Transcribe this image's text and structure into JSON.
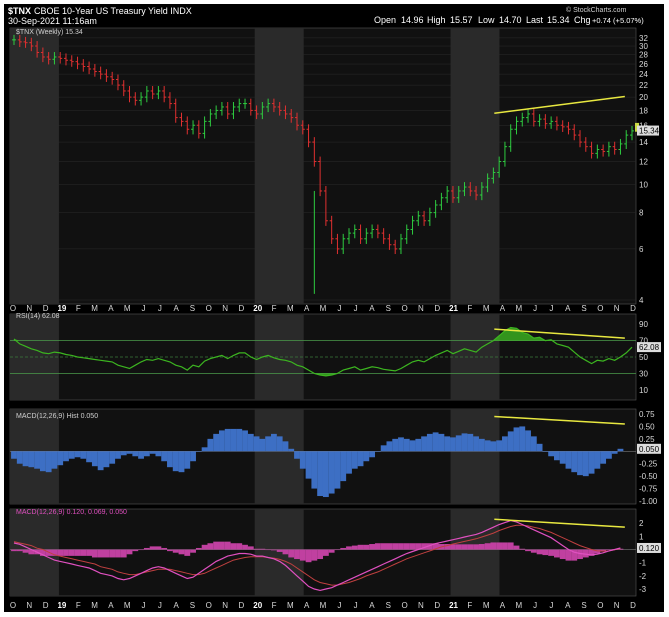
{
  "header": {
    "symbol": "$TNX",
    "name": "CBOE 10-Year US Treasury Yield INDX",
    "date": "30-Sep-2021 11:16am",
    "open_label": "Open",
    "open": "14.96",
    "high_label": "High",
    "high": "15.57",
    "low_label": "Low",
    "low": "14.70",
    "last_label": "Last",
    "last": "15.34",
    "chg_label": "Chg",
    "chg": "+0.74 (+5.07%)",
    "watermark": "© StockCharts.com",
    "legend": "$TNX (Weekly) 15.34"
  },
  "colors": {
    "up": "#2ecc40",
    "down": "#e03030",
    "rsi": "#3cb520",
    "macd_hist": "#3d6fc4",
    "macd_line": "#e050c0",
    "trend": "#e8e840",
    "bg": "#000000",
    "shade": "#2a2a2a"
  },
  "x_axis": {
    "labels_top": [
      "O",
      "N",
      "D",
      "19",
      "F",
      "M",
      "A",
      "M",
      "J",
      "J",
      "A",
      "S",
      "O",
      "N",
      "D",
      "20",
      "F",
      "M",
      "A",
      "M",
      "J",
      "J",
      "A",
      "S",
      "O",
      "N",
      "D",
      "21",
      "F",
      "M",
      "A",
      "M",
      "J",
      "J",
      "A",
      "S",
      "O",
      "N",
      "D"
    ]
  },
  "chart_data": [
    {
      "type": "ohlc",
      "title": "$TNX (Weekly) 15.34",
      "ylim": [
        4,
        33
      ],
      "y_scale": "log",
      "y_ticks": [
        4,
        6,
        8,
        10,
        12,
        14,
        16,
        18,
        20,
        22,
        24,
        26,
        28,
        30,
        32
      ],
      "last_value": "15.34",
      "x": [
        "O",
        "N",
        "D",
        "19",
        "F",
        "M",
        "A",
        "M",
        "J",
        "J",
        "A",
        "S",
        "O",
        "N",
        "D",
        "20",
        "F",
        "M",
        "A",
        "M",
        "J",
        "J",
        "A",
        "S",
        "O",
        "N",
        "D",
        "21",
        "F",
        "M",
        "A",
        "M",
        "J",
        "J",
        "A",
        "S",
        "O",
        "N",
        "D"
      ],
      "close_path": [
        31.5,
        31.0,
        30.8,
        30.0,
        28.5,
        27.5,
        27.0,
        27.5,
        27.2,
        26.8,
        26.5,
        26.0,
        25.5,
        25.0,
        24.5,
        24.0,
        23.5,
        23.0,
        22.0,
        21.0,
        20.0,
        19.5,
        20.0,
        21.0,
        20.5,
        21.0,
        20.0,
        19.0,
        17.0,
        16.5,
        15.5,
        16.0,
        15.0,
        16.5,
        17.5,
        18.0,
        18.5,
        17.5,
        18.5,
        19.0,
        19.0,
        18.0,
        17.5,
        18.5,
        19.0,
        18.5,
        18.0,
        17.5,
        17.0,
        16.0,
        15.5,
        14.0,
        12.0,
        9.5,
        7.5,
        6.5,
        6.0,
        6.5,
        6.8,
        7.0,
        6.5,
        6.8,
        7.0,
        6.8,
        6.5,
        6.2,
        6.0,
        6.5,
        7.0,
        7.5,
        7.8,
        7.5,
        8.0,
        8.5,
        9.0,
        9.5,
        9.0,
        9.5,
        9.8,
        9.5,
        9.2,
        9.8,
        10.5,
        11.0,
        12.0,
        13.5,
        15.5,
        16.5,
        17.0,
        17.5,
        16.5,
        16.8,
        16.2,
        16.5,
        16.0,
        15.8,
        15.5,
        14.8,
        14.0,
        13.5,
        12.8,
        13.2,
        13.0,
        13.5,
        13.2,
        13.8,
        14.8,
        15.3
      ],
      "trendline": [
        [
          "Mar-21",
          17.6
        ],
        [
          "Nov-21",
          20.1
        ]
      ]
    },
    {
      "type": "line",
      "title": "RSI(14) 62.08",
      "ylim": [
        0,
        100
      ],
      "y_ticks": [
        10,
        30,
        50,
        70,
        90
      ],
      "reference_lines": [
        30,
        50,
        70
      ],
      "last_value": "62.08",
      "values": [
        72,
        66,
        63,
        60,
        58,
        55,
        54,
        56,
        55,
        53,
        52,
        50,
        49,
        48,
        47,
        46,
        45,
        44,
        40,
        38,
        36,
        40,
        44,
        47,
        46,
        48,
        46,
        44,
        40,
        38,
        34,
        40,
        38,
        45,
        48,
        50,
        52,
        48,
        52,
        55,
        55,
        50,
        47,
        50,
        52,
        49,
        47,
        46,
        44,
        40,
        38,
        34,
        30,
        28,
        27,
        28,
        30,
        34,
        36,
        38,
        34,
        36,
        38,
        37,
        35,
        34,
        33,
        36,
        40,
        44,
        46,
        44,
        48,
        52,
        55,
        58,
        54,
        57,
        60,
        58,
        56,
        62,
        66,
        70,
        76,
        82,
        86,
        85,
        80,
        78,
        73,
        74,
        70,
        71,
        66,
        64,
        62,
        56,
        50,
        46,
        42,
        46,
        45,
        48,
        46,
        50,
        55,
        62
      ],
      "trendline": [
        [
          "Mar-21",
          84
        ],
        [
          "Nov-21",
          73
        ]
      ]
    },
    {
      "type": "bar",
      "title": "MACD(12,26,9) Hist 0.050",
      "ylim": [
        -1.0,
        0.75
      ],
      "y_ticks": [
        -1.0,
        -0.75,
        -0.5,
        -0.25,
        0.25,
        0.5,
        0.75
      ],
      "last_value": "0.050",
      "values": [
        -0.15,
        -0.25,
        -0.3,
        -0.32,
        -0.35,
        -0.4,
        -0.42,
        -0.35,
        -0.28,
        -0.2,
        -0.15,
        -0.12,
        -0.15,
        -0.22,
        -0.3,
        -0.38,
        -0.32,
        -0.25,
        -0.15,
        -0.08,
        -0.05,
        -0.1,
        -0.15,
        -0.1,
        -0.05,
        -0.1,
        -0.2,
        -0.32,
        -0.4,
        -0.42,
        -0.35,
        -0.2,
        0.0,
        0.08,
        0.25,
        0.35,
        0.42,
        0.45,
        0.45,
        0.45,
        0.42,
        0.35,
        0.3,
        0.25,
        0.3,
        0.35,
        0.3,
        0.2,
        0.05,
        -0.15,
        -0.35,
        -0.55,
        -0.75,
        -0.9,
        -0.92,
        -0.85,
        -0.75,
        -0.6,
        -0.45,
        -0.35,
        -0.3,
        -0.2,
        -0.12,
        0.0,
        0.12,
        0.2,
        0.25,
        0.28,
        0.25,
        0.22,
        0.25,
        0.3,
        0.35,
        0.38,
        0.35,
        0.3,
        0.28,
        0.32,
        0.36,
        0.35,
        0.3,
        0.25,
        0.22,
        0.2,
        0.22,
        0.3,
        0.4,
        0.48,
        0.5,
        0.42,
        0.3,
        0.15,
        0.0,
        -0.1,
        -0.18,
        -0.25,
        -0.35,
        -0.42,
        -0.48,
        -0.5,
        -0.45,
        -0.35,
        -0.25,
        -0.15,
        -0.05,
        0.05
      ],
      "trendline": [
        [
          "Mar-21",
          0.7
        ],
        [
          "Nov-21",
          0.55
        ]
      ]
    },
    {
      "type": "line",
      "title": "MACD(12,26,9) 0.120, 0.069, 0.050",
      "ylim": [
        -3.3,
        2.7
      ],
      "y_ticks": [
        -3,
        -2,
        -1,
        1,
        2
      ],
      "last_value": "0.120",
      "series": [
        {
          "name": "MACD",
          "values": [
            0.5,
            0.4,
            0.2,
            0.0,
            -0.2,
            -0.4,
            -0.6,
            -0.8,
            -0.9,
            -1.0,
            -1.1,
            -1.2,
            -1.3,
            -1.4,
            -1.6,
            -1.8,
            -1.9,
            -2.0,
            -2.2,
            -2.3,
            -2.2,
            -2.0,
            -1.8,
            -1.6,
            -1.4,
            -1.3,
            -1.4,
            -1.6,
            -1.8,
            -2.0,
            -2.2,
            -2.1,
            -1.8,
            -1.5,
            -1.2,
            -0.9,
            -0.7,
            -0.5,
            -0.4,
            -0.3,
            -0.3,
            -0.35,
            -0.5,
            -0.5,
            -0.6,
            -0.7,
            -0.9,
            -1.2,
            -1.6,
            -2.0,
            -2.4,
            -2.8,
            -3.0,
            -3.1,
            -3.0,
            -2.9,
            -2.7,
            -2.5,
            -2.3,
            -2.1,
            -1.9,
            -1.7,
            -1.5,
            -1.3,
            -1.1,
            -0.9,
            -0.7,
            -0.5,
            -0.3,
            -0.15,
            0.0,
            0.15,
            0.3,
            0.45,
            0.55,
            0.65,
            0.75,
            0.85,
            0.95,
            1.05,
            1.15,
            1.3,
            1.5,
            1.7,
            1.9,
            2.05,
            2.2,
            2.1,
            1.9,
            1.7,
            1.5,
            1.3,
            1.1,
            0.9,
            0.6,
            0.3,
            0.0,
            -0.2,
            -0.3,
            -0.35,
            -0.4,
            -0.35,
            -0.25,
            -0.1,
            0.0,
            0.12
          ]
        },
        {
          "name": "Signal",
          "values": [
            0.6,
            0.5,
            0.4,
            0.3,
            0.1,
            0.0,
            -0.2,
            -0.4,
            -0.5,
            -0.6,
            -0.7,
            -0.8,
            -0.9,
            -1.0,
            -1.1,
            -1.3,
            -1.4,
            -1.5,
            -1.7,
            -1.8,
            -1.9,
            -1.9,
            -1.8,
            -1.7,
            -1.6,
            -1.5,
            -1.5,
            -1.5,
            -1.6,
            -1.7,
            -1.8,
            -1.9,
            -1.9,
            -1.8,
            -1.6,
            -1.4,
            -1.2,
            -1.0,
            -0.8,
            -0.7,
            -0.6,
            -0.55,
            -0.55,
            -0.55,
            -0.6,
            -0.65,
            -0.75,
            -0.9,
            -1.1,
            -1.4,
            -1.7,
            -2.0,
            -2.3,
            -2.5,
            -2.6,
            -2.7,
            -2.7,
            -2.6,
            -2.5,
            -2.35,
            -2.2,
            -2.0,
            -1.85,
            -1.7,
            -1.5,
            -1.3,
            -1.1,
            -0.9,
            -0.7,
            -0.55,
            -0.4,
            -0.25,
            -0.1,
            0.05,
            0.2,
            0.3,
            0.42,
            0.52,
            0.62,
            0.72,
            0.82,
            0.95,
            1.1,
            1.25,
            1.45,
            1.6,
            1.75,
            1.85,
            1.85,
            1.8,
            1.7,
            1.6,
            1.45,
            1.3,
            1.1,
            0.9,
            0.7,
            0.5,
            0.3,
            0.15,
            0.0,
            -0.1,
            -0.12,
            -0.1,
            -0.02,
            0.07
          ]
        }
      ],
      "trendline": [
        [
          "Mar-21",
          2.3
        ],
        [
          "Nov-21",
          1.7
        ]
      ]
    }
  ],
  "x_axis_bottom": [
    "O",
    "N",
    "D",
    "19",
    "F",
    "M",
    "A",
    "M",
    "J",
    "J",
    "A",
    "S",
    "O",
    "N",
    "D",
    "20",
    "F",
    "M",
    "A",
    "M",
    "J",
    "J",
    "A",
    "S",
    "O",
    "N",
    "D",
    "21",
    "F",
    "M",
    "A",
    "M",
    "J",
    "J",
    "A",
    "S",
    "O",
    "N",
    "D"
  ]
}
